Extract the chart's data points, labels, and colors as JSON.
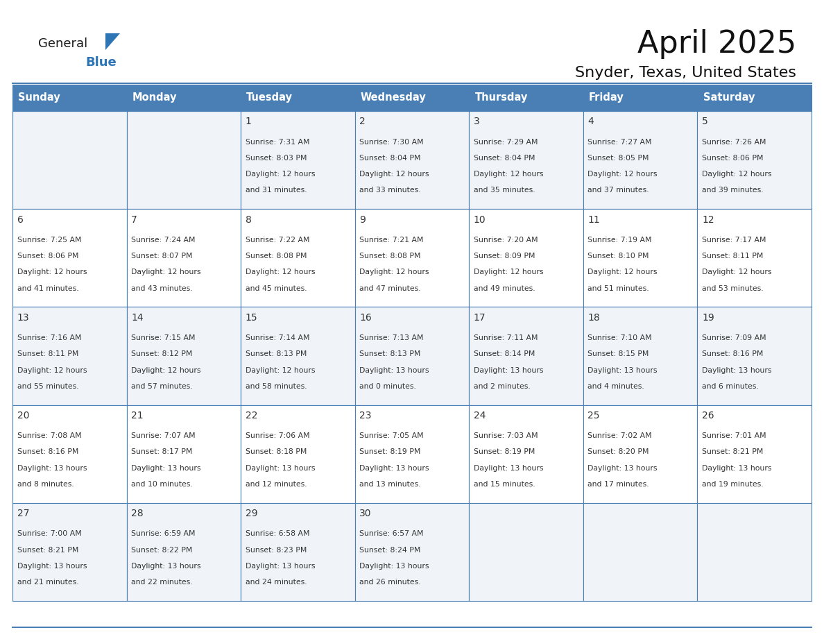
{
  "title": "April 2025",
  "subtitle": "Snyder, Texas, United States",
  "header_color": "#4A7FB5",
  "header_text_color": "#FFFFFF",
  "cell_bg_even": "#F0F4F8",
  "cell_bg_odd": "#FFFFFF",
  "border_color": "#4A7FB5",
  "text_color": "#333333",
  "days_of_week": [
    "Sunday",
    "Monday",
    "Tuesday",
    "Wednesday",
    "Thursday",
    "Friday",
    "Saturday"
  ],
  "logo_general_color": "#1a1a1a",
  "logo_blue_color": "#2E75B6",
  "calendar_data": [
    [
      {
        "day": "",
        "lines": []
      },
      {
        "day": "",
        "lines": []
      },
      {
        "day": "1",
        "lines": [
          "Sunrise: 7:31 AM",
          "Sunset: 8:03 PM",
          "Daylight: 12 hours",
          "and 31 minutes."
        ]
      },
      {
        "day": "2",
        "lines": [
          "Sunrise: 7:30 AM",
          "Sunset: 8:04 PM",
          "Daylight: 12 hours",
          "and 33 minutes."
        ]
      },
      {
        "day": "3",
        "lines": [
          "Sunrise: 7:29 AM",
          "Sunset: 8:04 PM",
          "Daylight: 12 hours",
          "and 35 minutes."
        ]
      },
      {
        "day": "4",
        "lines": [
          "Sunrise: 7:27 AM",
          "Sunset: 8:05 PM",
          "Daylight: 12 hours",
          "and 37 minutes."
        ]
      },
      {
        "day": "5",
        "lines": [
          "Sunrise: 7:26 AM",
          "Sunset: 8:06 PM",
          "Daylight: 12 hours",
          "and 39 minutes."
        ]
      }
    ],
    [
      {
        "day": "6",
        "lines": [
          "Sunrise: 7:25 AM",
          "Sunset: 8:06 PM",
          "Daylight: 12 hours",
          "and 41 minutes."
        ]
      },
      {
        "day": "7",
        "lines": [
          "Sunrise: 7:24 AM",
          "Sunset: 8:07 PM",
          "Daylight: 12 hours",
          "and 43 minutes."
        ]
      },
      {
        "day": "8",
        "lines": [
          "Sunrise: 7:22 AM",
          "Sunset: 8:08 PM",
          "Daylight: 12 hours",
          "and 45 minutes."
        ]
      },
      {
        "day": "9",
        "lines": [
          "Sunrise: 7:21 AM",
          "Sunset: 8:08 PM",
          "Daylight: 12 hours",
          "and 47 minutes."
        ]
      },
      {
        "day": "10",
        "lines": [
          "Sunrise: 7:20 AM",
          "Sunset: 8:09 PM",
          "Daylight: 12 hours",
          "and 49 minutes."
        ]
      },
      {
        "day": "11",
        "lines": [
          "Sunrise: 7:19 AM",
          "Sunset: 8:10 PM",
          "Daylight: 12 hours",
          "and 51 minutes."
        ]
      },
      {
        "day": "12",
        "lines": [
          "Sunrise: 7:17 AM",
          "Sunset: 8:11 PM",
          "Daylight: 12 hours",
          "and 53 minutes."
        ]
      }
    ],
    [
      {
        "day": "13",
        "lines": [
          "Sunrise: 7:16 AM",
          "Sunset: 8:11 PM",
          "Daylight: 12 hours",
          "and 55 minutes."
        ]
      },
      {
        "day": "14",
        "lines": [
          "Sunrise: 7:15 AM",
          "Sunset: 8:12 PM",
          "Daylight: 12 hours",
          "and 57 minutes."
        ]
      },
      {
        "day": "15",
        "lines": [
          "Sunrise: 7:14 AM",
          "Sunset: 8:13 PM",
          "Daylight: 12 hours",
          "and 58 minutes."
        ]
      },
      {
        "day": "16",
        "lines": [
          "Sunrise: 7:13 AM",
          "Sunset: 8:13 PM",
          "Daylight: 13 hours",
          "and 0 minutes."
        ]
      },
      {
        "day": "17",
        "lines": [
          "Sunrise: 7:11 AM",
          "Sunset: 8:14 PM",
          "Daylight: 13 hours",
          "and 2 minutes."
        ]
      },
      {
        "day": "18",
        "lines": [
          "Sunrise: 7:10 AM",
          "Sunset: 8:15 PM",
          "Daylight: 13 hours",
          "and 4 minutes."
        ]
      },
      {
        "day": "19",
        "lines": [
          "Sunrise: 7:09 AM",
          "Sunset: 8:16 PM",
          "Daylight: 13 hours",
          "and 6 minutes."
        ]
      }
    ],
    [
      {
        "day": "20",
        "lines": [
          "Sunrise: 7:08 AM",
          "Sunset: 8:16 PM",
          "Daylight: 13 hours",
          "and 8 minutes."
        ]
      },
      {
        "day": "21",
        "lines": [
          "Sunrise: 7:07 AM",
          "Sunset: 8:17 PM",
          "Daylight: 13 hours",
          "and 10 minutes."
        ]
      },
      {
        "day": "22",
        "lines": [
          "Sunrise: 7:06 AM",
          "Sunset: 8:18 PM",
          "Daylight: 13 hours",
          "and 12 minutes."
        ]
      },
      {
        "day": "23",
        "lines": [
          "Sunrise: 7:05 AM",
          "Sunset: 8:19 PM",
          "Daylight: 13 hours",
          "and 13 minutes."
        ]
      },
      {
        "day": "24",
        "lines": [
          "Sunrise: 7:03 AM",
          "Sunset: 8:19 PM",
          "Daylight: 13 hours",
          "and 15 minutes."
        ]
      },
      {
        "day": "25",
        "lines": [
          "Sunrise: 7:02 AM",
          "Sunset: 8:20 PM",
          "Daylight: 13 hours",
          "and 17 minutes."
        ]
      },
      {
        "day": "26",
        "lines": [
          "Sunrise: 7:01 AM",
          "Sunset: 8:21 PM",
          "Daylight: 13 hours",
          "and 19 minutes."
        ]
      }
    ],
    [
      {
        "day": "27",
        "lines": [
          "Sunrise: 7:00 AM",
          "Sunset: 8:21 PM",
          "Daylight: 13 hours",
          "and 21 minutes."
        ]
      },
      {
        "day": "28",
        "lines": [
          "Sunrise: 6:59 AM",
          "Sunset: 8:22 PM",
          "Daylight: 13 hours",
          "and 22 minutes."
        ]
      },
      {
        "day": "29",
        "lines": [
          "Sunrise: 6:58 AM",
          "Sunset: 8:23 PM",
          "Daylight: 13 hours",
          "and 24 minutes."
        ]
      },
      {
        "day": "30",
        "lines": [
          "Sunrise: 6:57 AM",
          "Sunset: 8:24 PM",
          "Daylight: 13 hours",
          "and 26 minutes."
        ]
      },
      {
        "day": "",
        "lines": []
      },
      {
        "day": "",
        "lines": []
      },
      {
        "day": "",
        "lines": []
      }
    ]
  ]
}
